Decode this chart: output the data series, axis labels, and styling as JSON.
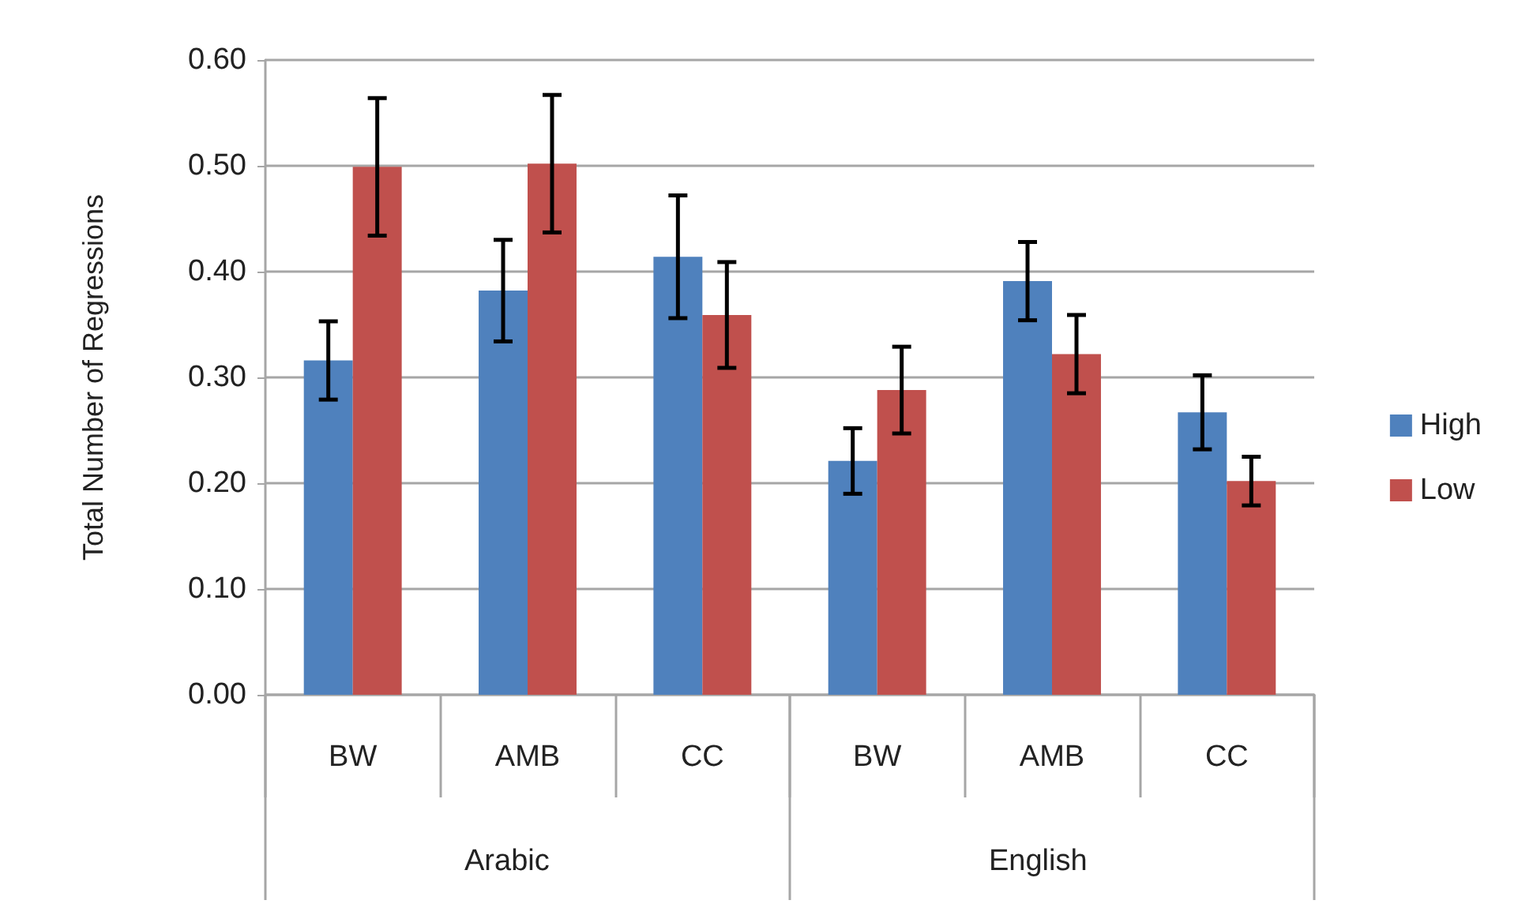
{
  "chart_data": {
    "type": "bar",
    "ylabel": "Total Number of Regressions",
    "categories": [
      "BW",
      "AMB",
      "CC",
      "BW",
      "AMB",
      "CC"
    ],
    "series": [
      {
        "name": "High",
        "color": "#4f81bd",
        "values": [
          0.316,
          0.382,
          0.414,
          0.221,
          0.391,
          0.267
        ],
        "errors": [
          0.037,
          0.048,
          0.058,
          0.031,
          0.037,
          0.035
        ]
      },
      {
        "name": "Low",
        "color": "#c0504d",
        "values": [
          0.499,
          0.502,
          0.359,
          0.288,
          0.322,
          0.202
        ],
        "errors": [
          0.065,
          0.065,
          0.05,
          0.041,
          0.037,
          0.023
        ]
      }
    ],
    "annotations": [
      "Arabic",
      "English"
    ],
    "ylim": [
      0,
      0.6
    ],
    "yticks": [
      {
        "value": 0,
        "label": "0.00"
      },
      {
        "value": 0.1,
        "label": "0.10"
      },
      {
        "value": 0.2,
        "label": "0.20"
      },
      {
        "value": 0.3,
        "label": "0.30"
      },
      {
        "value": 0.4,
        "label": "0.40"
      },
      {
        "value": 0.5,
        "label": "0.50"
      },
      {
        "value": 0.6,
        "label": "0.60"
      }
    ],
    "grid": "y",
    "legend": "right"
  }
}
